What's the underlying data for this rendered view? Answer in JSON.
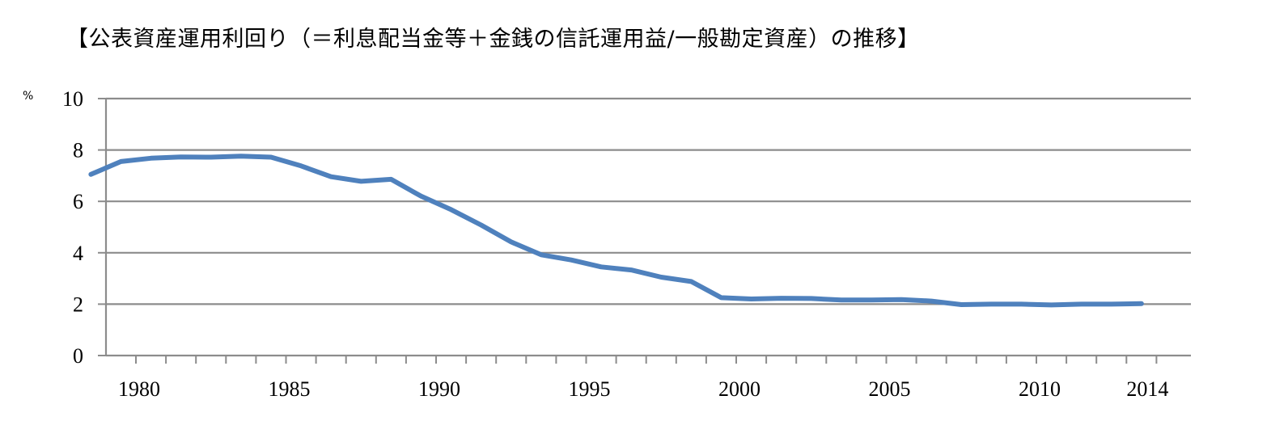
{
  "chart_data": {
    "type": "line",
    "title": "【公表資産運用利回り（＝利息配当金等＋金銭の信託運用益/一般勘定資産）の推移】",
    "ylabel": "%",
    "xlabel": "",
    "ylim": [
      0,
      10
    ],
    "xlim": [
      1979,
      2014
    ],
    "y_ticks": [
      0,
      2,
      4,
      6,
      8,
      10
    ],
    "x_tick_labels": [
      1980,
      1985,
      1990,
      1995,
      2000,
      2005,
      2010,
      2014
    ],
    "grid": true,
    "legend": "none",
    "series": [
      {
        "color": "#4f81bd",
        "x": [
          1979,
          1980,
          1981,
          1982,
          1983,
          1984,
          1985,
          1986,
          1987,
          1988,
          1989,
          1990,
          1991,
          1992,
          1993,
          1994,
          1995,
          1996,
          1997,
          1998,
          1999,
          2000,
          2001,
          2002,
          2003,
          2004,
          2005,
          2006,
          2007,
          2008,
          2009,
          2010,
          2011,
          2012,
          2013,
          2014
        ],
        "values": [
          7.05,
          7.55,
          7.68,
          7.73,
          7.72,
          7.76,
          7.72,
          7.38,
          6.96,
          6.78,
          6.86,
          6.2,
          5.68,
          5.08,
          4.42,
          3.92,
          3.72,
          3.45,
          3.33,
          3.05,
          2.88,
          2.25,
          2.2,
          2.23,
          2.22,
          2.16,
          2.16,
          2.18,
          2.12,
          1.98,
          2.0,
          2.0,
          1.97,
          2.0,
          2.0,
          2.02
        ]
      }
    ]
  }
}
